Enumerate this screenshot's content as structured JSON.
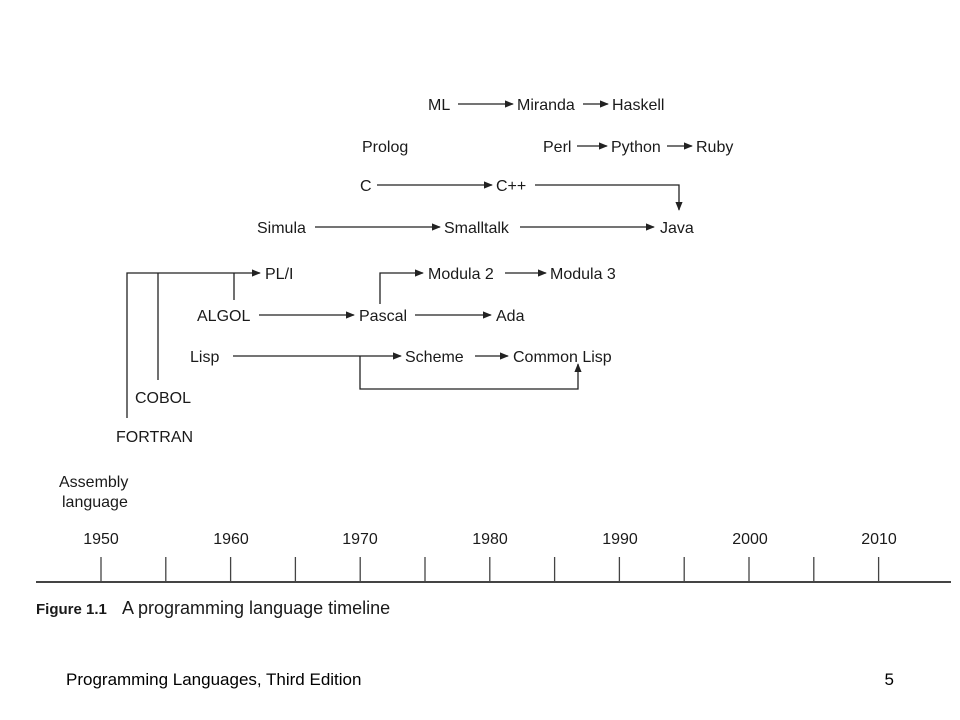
{
  "languages": {
    "ml": "ML",
    "miranda": "Miranda",
    "haskell": "Haskell",
    "prolog": "Prolog",
    "perl": "Perl",
    "python": "Python",
    "ruby": "Ruby",
    "c": "C",
    "cpp": "C++",
    "simula": "Simula",
    "smalltalk": "Smalltalk",
    "java": "Java",
    "pli": "PL/I",
    "modula2": "Modula 2",
    "modula3": "Modula 3",
    "algol": "ALGOL",
    "pascal": "Pascal",
    "ada": "Ada",
    "lisp": "Lisp",
    "scheme": "Scheme",
    "common_lisp": "Common Lisp",
    "cobol": "COBOL",
    "fortran": "FORTRAN",
    "assembly_line1": "Assembly",
    "assembly_line2": "language"
  },
  "timeline": {
    "years": [
      "1950",
      "1960",
      "1970",
      "1980",
      "1990",
      "2000",
      "2010"
    ]
  },
  "caption": {
    "figure_number": "Figure 1.1",
    "figure_text": "A programming language timeline"
  },
  "footer": {
    "title": "Programming Languages, Third Edition",
    "page_number": "5"
  }
}
